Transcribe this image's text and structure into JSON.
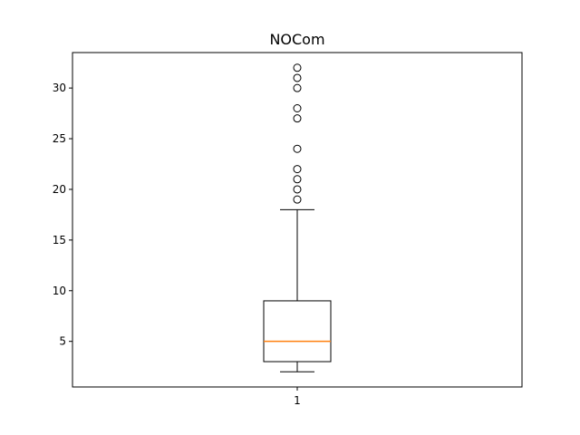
{
  "chart_data": {
    "type": "boxplot",
    "title": "NOCom",
    "xlabel": "",
    "ylabel": "",
    "categories": [
      "1"
    ],
    "ylim": [
      0.5,
      33.5
    ],
    "yticks": [
      5,
      10,
      15,
      20,
      25,
      30
    ],
    "grid": false,
    "boxes": [
      {
        "label": "1",
        "whisker_low": 2,
        "q1": 3,
        "median": 5,
        "q3": 9,
        "whisker_high": 18,
        "outliers": [
          19,
          20,
          21,
          22,
          24,
          27,
          28,
          30,
          31,
          32
        ]
      }
    ],
    "colors": {
      "box": "#000000",
      "median": "#ff7f0e",
      "outlier_edge": "#000000"
    }
  }
}
